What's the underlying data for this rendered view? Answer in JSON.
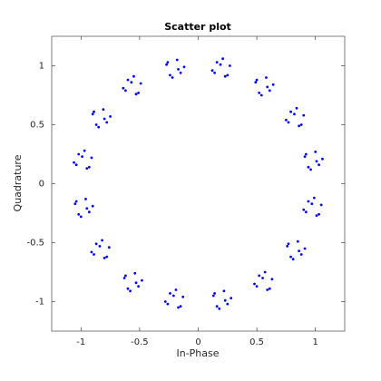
{
  "chart_data": {
    "type": "scatter",
    "title": "Scatter plot",
    "x_label": "In-Phase",
    "y_label": "Quadrature",
    "color": "#0000ff",
    "grid": false,
    "xlim": [
      -1.25,
      1.25
    ],
    "ylim": [
      -1.25,
      1.25
    ],
    "xticks": [
      -1,
      -0.5,
      0,
      0.5,
      1
    ],
    "yticks": [
      -1,
      -0.5,
      0,
      0.5,
      1
    ],
    "x": [
      1.03,
      0.91,
      1.0,
      0.94,
      1.06,
      0.96,
      1.01,
      0.92,
      0.79,
      0.86,
      0.9,
      0.77,
      0.84,
      0.75,
      0.82,
      0.88,
      0.61,
      0.49,
      0.58,
      0.52,
      0.64,
      0.54,
      0.59,
      0.5,
      0.16,
      0.23,
      0.27,
      0.14,
      0.21,
      0.12,
      0.19,
      0.25,
      -0.15,
      -0.27,
      -0.18,
      -0.24,
      -0.12,
      -0.22,
      -0.17,
      -0.26,
      -0.6,
      -0.53,
      -0.49,
      -0.62,
      -0.55,
      -0.64,
      -0.57,
      -0.51,
      -0.78,
      -0.9,
      -0.81,
      -0.87,
      -0.75,
      -0.85,
      -0.8,
      -0.89,
      -1.02,
      -0.95,
      -0.91,
      -1.04,
      -0.97,
      -1.06,
      -0.99,
      -0.93,
      -0.93,
      -1.05,
      -0.96,
      -1.02,
      -0.9,
      -1.0,
      -0.95,
      -1.04,
      -0.87,
      -0.8,
      -0.76,
      -0.89,
      -0.82,
      -0.91,
      -0.84,
      -0.78,
      -0.51,
      -0.63,
      -0.54,
      -0.6,
      -0.48,
      -0.58,
      -0.53,
      -0.62,
      -0.24,
      -0.17,
      -0.13,
      -0.26,
      -0.19,
      -0.28,
      -0.21,
      -0.15,
      0.25,
      0.13,
      0.22,
      0.16,
      0.28,
      0.18,
      0.23,
      0.14,
      0.52,
      0.59,
      0.63,
      0.5,
      0.57,
      0.48,
      0.55,
      0.61,
      0.88,
      0.76,
      0.85,
      0.79,
      0.91,
      0.81,
      0.86,
      0.77,
      0.94,
      1.01,
      1.05,
      0.92,
      0.99,
      0.9,
      0.97,
      1.03
    ],
    "y": [
      0.16,
      0.23,
      0.27,
      0.14,
      0.21,
      0.12,
      0.19,
      0.25,
      0.61,
      0.49,
      0.58,
      0.52,
      0.64,
      0.54,
      0.59,
      0.5,
      0.79,
      0.86,
      0.9,
      0.77,
      0.84,
      0.75,
      0.82,
      0.88,
      1.03,
      0.91,
      1.0,
      0.94,
      1.06,
      0.96,
      1.01,
      0.92,
      0.94,
      1.01,
      1.05,
      0.92,
      0.99,
      0.9,
      0.97,
      1.03,
      0.88,
      0.76,
      0.85,
      0.79,
      0.91,
      0.81,
      0.86,
      0.77,
      0.52,
      0.59,
      0.63,
      0.5,
      0.57,
      0.48,
      0.55,
      0.61,
      0.25,
      0.13,
      0.22,
      0.16,
      0.28,
      0.18,
      0.23,
      0.14,
      -0.24,
      -0.17,
      -0.13,
      -0.26,
      -0.19,
      -0.28,
      -0.21,
      -0.15,
      -0.51,
      -0.63,
      -0.54,
      -0.6,
      -0.48,
      -0.58,
      -0.53,
      -0.62,
      -0.87,
      -0.8,
      -0.76,
      -0.89,
      -0.82,
      -0.91,
      -0.84,
      -0.78,
      -0.93,
      -1.05,
      -0.96,
      -1.02,
      -0.9,
      -1.0,
      -0.95,
      -1.04,
      -1.02,
      -0.95,
      -0.91,
      -1.04,
      -0.97,
      -1.06,
      -0.99,
      -0.93,
      -0.78,
      -0.9,
      -0.81,
      -0.87,
      -0.75,
      -0.85,
      -0.8,
      -0.89,
      -0.6,
      -0.53,
      -0.49,
      -0.62,
      -0.55,
      -0.64,
      -0.57,
      -0.51,
      -0.15,
      -0.27,
      -0.18,
      -0.24,
      -0.12,
      -0.22,
      -0.17,
      -0.26
    ]
  }
}
